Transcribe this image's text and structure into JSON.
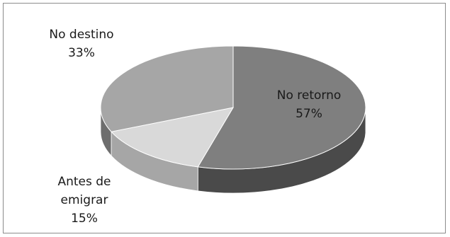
{
  "chart_data": {
    "type": "pie",
    "style": "3d",
    "title": "",
    "slices": [
      {
        "name": "No retorno",
        "value": 57,
        "label": "57%",
        "color": "#7f7f7f",
        "side_color": "#4a4a4a"
      },
      {
        "name": "Antes de emigrar",
        "value": 15,
        "label": "15%",
        "color": "#d9d9d9",
        "side_color": "#a6a6a6"
      },
      {
        "name": "No destino",
        "value": 33,
        "label": "33%",
        "color": "#a6a6a6",
        "side_color": "#6e6e6e"
      }
    ],
    "label_texts": {
      "no_retorno_line1": "No retorno",
      "no_retorno_pct": "57%",
      "antes_line1": "Antes de",
      "antes_line2": "emigrar",
      "antes_pct": "15%",
      "no_destino_line1": "No destino",
      "no_destino_pct": "33%"
    }
  }
}
